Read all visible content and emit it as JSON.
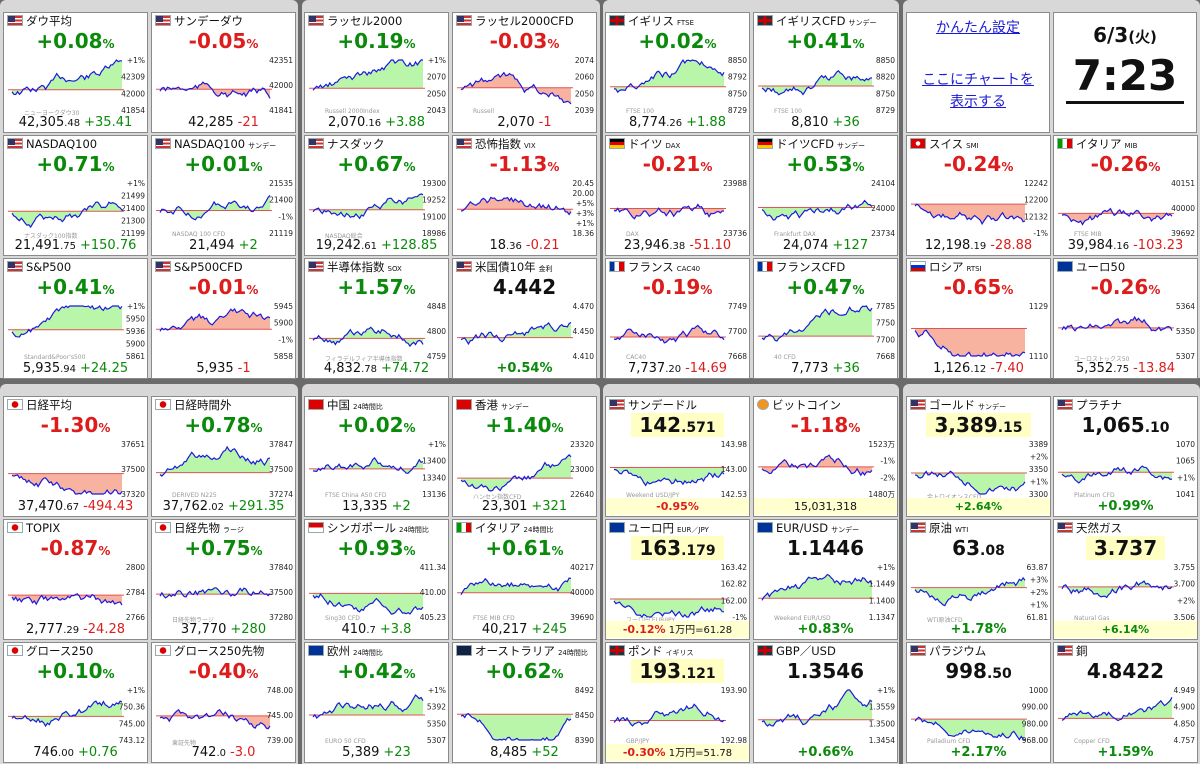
{
  "settings": {
    "easy_settings": "かんたん設定",
    "chart_here_1": "ここにチャートを",
    "chart_here_2": "表示する"
  },
  "clock": {
    "date": "6/3",
    "weekday": "(火)",
    "time": "7:23"
  },
  "colors": {
    "up": "#0a8a0a",
    "down": "#dd1c1c",
    "fill_up": "#aef59a",
    "fill_down": "#f7a58f",
    "line": "#1a1adf"
  },
  "tiles": [
    {
      "id": "dow",
      "flag": "f-us",
      "title": "ダウ平均",
      "sub": "",
      "change": "+0.08",
      "unit": "%",
      "dir": "up",
      "price_int": "42,305",
      "price_dec": ".48",
      "price_chg": "+35.41",
      "labels": [
        "+1%",
        "42309",
        "42000",
        "41854"
      ],
      "wm": "ニューヨークダウ30"
    },
    {
      "id": "dow_sun",
      "flag": "f-us",
      "title": "サンデーダウ",
      "sub": "",
      "change": "-0.05",
      "unit": "%",
      "dir": "dn",
      "price_int": "42,285",
      "price_dec": "",
      "price_chg": "-21",
      "labels": [
        "42351",
        "42000",
        "41841"
      ],
      "wm": ""
    },
    {
      "id": "rus",
      "flag": "f-us",
      "title": "ラッセル2000",
      "sub": "",
      "change": "+0.19",
      "unit": "%",
      "dir": "up",
      "price_int": "2,070",
      "price_dec": ".16",
      "price_chg": "+3.88",
      "labels": [
        "+1%",
        "2070",
        "2050",
        "2043"
      ],
      "wm": "Russell 2000Index"
    },
    {
      "id": "rus_cfd",
      "flag": "f-us",
      "title": "ラッセル2000CFD",
      "sub": "",
      "change": "-0.03",
      "unit": "%",
      "dir": "dn",
      "price_int": "2,070",
      "price_dec": "",
      "price_chg": "-1",
      "labels": [
        "2074",
        "2060",
        "2050",
        "2039"
      ],
      "wm": "Russell"
    },
    {
      "id": "ftse",
      "flag": "f-gb",
      "title": "イギリス",
      "sub": "FTSE",
      "change": "+0.02",
      "unit": "%",
      "dir": "up",
      "price_int": "8,774",
      "price_dec": ".26",
      "price_chg": "+1.88",
      "labels": [
        "8850",
        "8792",
        "8750",
        "8729"
      ],
      "wm": "FTSE 100"
    },
    {
      "id": "ftse_cfd",
      "flag": "f-gb",
      "title": "イギリスCFD",
      "sub": "サンデー",
      "change": "+0.41",
      "unit": "%",
      "dir": "up",
      "price_int": "8,810",
      "price_dec": "",
      "price_chg": "+36",
      "labels": [
        "8850",
        "8820",
        "8750",
        "8729"
      ],
      "wm": "FTSE 100"
    },
    {
      "id": "ndq",
      "flag": "f-us",
      "title": "NASDAQ100",
      "sub": "",
      "change": "+0.71",
      "unit": "%",
      "dir": "up",
      "price_int": "21,491",
      "price_dec": ".75",
      "price_chg": "+150.76",
      "labels": [
        "+1%",
        "21499",
        "21400",
        "21300",
        "21199"
      ],
      "wm": "ナスダック100指数"
    },
    {
      "id": "ndq_sun",
      "flag": "f-us",
      "title": "NASDAQ100",
      "sub": "サンデー",
      "change": "+0.01",
      "unit": "%",
      "dir": "up",
      "price_int": "21,494",
      "price_dec": "",
      "price_chg": "+2",
      "labels": [
        "21535",
        "21400",
        "-1%",
        "21119"
      ],
      "wm": "NASDAQ 100 CFD"
    },
    {
      "id": "nas",
      "flag": "f-us",
      "title": "ナスダック",
      "sub": "",
      "change": "+0.67",
      "unit": "%",
      "dir": "up",
      "price_int": "19,242",
      "price_dec": ".61",
      "price_chg": "+128.85",
      "labels": [
        "19300",
        "19252",
        "19100",
        "18986"
      ],
      "wm": "NASDAQ総合"
    },
    {
      "id": "vix",
      "flag": "f-us",
      "title": "恐怖指数",
      "sub": "VIX",
      "change": "-1.13",
      "unit": "%",
      "dir": "dn",
      "price_int": "18",
      "price_dec": ".36",
      "price_chg": "-0.21",
      "labels": [
        "20.45",
        "20.00",
        "+5%",
        "+3%",
        "+1%",
        "18.36"
      ],
      "wm": ""
    },
    {
      "id": "dax",
      "flag": "f-de",
      "title": "ドイツ",
      "sub": "DAX",
      "change": "-0.21",
      "unit": "%",
      "dir": "dn",
      "price_int": "23,946",
      "price_dec": ".38",
      "price_chg": "-51.10",
      "labels": [
        "23988",
        "23736"
      ],
      "wm": "DAX"
    },
    {
      "id": "dax_cfd",
      "flag": "f-de",
      "title": "ドイツCFD",
      "sub": "サンデー",
      "change": "+0.53",
      "unit": "%",
      "dir": "up",
      "price_int": "24,074",
      "price_dec": "",
      "price_chg": "+127",
      "labels": [
        "24104",
        "24000",
        "23734"
      ],
      "wm": "Frankfurt DAX"
    },
    {
      "id": "spx",
      "flag": "f-us",
      "title": "S&P500",
      "sub": "",
      "change": "+0.41",
      "unit": "%",
      "dir": "up",
      "price_int": "5,935",
      "price_dec": ".94",
      "price_chg": "+24.25",
      "labels": [
        "+1%",
        "5950",
        "5936",
        "5900",
        "5861"
      ],
      "wm": "Standard&Poor's500"
    },
    {
      "id": "spx_cfd",
      "flag": "f-us",
      "title": "S&P500CFD",
      "sub": "",
      "change": "-0.01",
      "unit": "%",
      "dir": "dn",
      "price_int": "5,935",
      "price_dec": "",
      "price_chg": "-1",
      "labels": [
        "5945",
        "5900",
        "-1%",
        "5858"
      ],
      "wm": ""
    },
    {
      "id": "sox",
      "flag": "f-us",
      "title": "半導体指数",
      "sub": "SOX",
      "change": "+1.57",
      "unit": "%",
      "dir": "up",
      "price_int": "4,832",
      "price_dec": ".78",
      "price_chg": "+74.72",
      "labels": [
        "4848",
        "4800",
        "4759"
      ],
      "wm": "フィラデルフィア半導体指数"
    },
    {
      "id": "us10",
      "flag": "f-us",
      "title": "米国債10年",
      "sub": "金利",
      "change": "",
      "unit": "",
      "dir": "",
      "big": "4.442",
      "bigdec": "",
      "price_int": "",
      "price_dec": "",
      "price_chg": "+0.54%",
      "labels": [
        "4.470",
        "4.450",
        "4.410"
      ],
      "wm": ""
    },
    {
      "id": "cac",
      "flag": "f-fr",
      "title": "フランス",
      "sub": "CAC40",
      "change": "-0.19",
      "unit": "%",
      "dir": "dn",
      "price_int": "7,737",
      "price_dec": ".20",
      "price_chg": "-14.69",
      "labels": [
        "7749",
        "7700",
        "7668"
      ],
      "wm": "CAC40"
    },
    {
      "id": "cac_cfd",
      "flag": "f-fr",
      "title": "フランスCFD",
      "sub": "",
      "change": "+0.47",
      "unit": "%",
      "dir": "up",
      "price_int": "7,773",
      "price_dec": "",
      "price_chg": "+36",
      "labels": [
        "7785",
        "7750",
        "7700",
        "7668"
      ],
      "wm": "40 CFD"
    },
    {
      "id": "rts",
      "flag": "f-ru",
      "title": "ロシア",
      "sub": "RTSI",
      "change": "-0.65",
      "unit": "%",
      "dir": "dn",
      "price_int": "1,126",
      "price_dec": ".12",
      "price_chg": "-7.40",
      "labels": [
        "1129",
        "1110"
      ],
      "wm": ""
    },
    {
      "id": "eu50",
      "flag": "f-eu",
      "title": "ユーロ50",
      "sub": "",
      "change": "-0.26",
      "unit": "%",
      "dir": "dn",
      "price_int": "5,352",
      "price_dec": ".75",
      "price_chg": "-13.84",
      "labels": [
        "5364",
        "5350",
        "5307"
      ],
      "wm": "ユーロストックス50"
    },
    {
      "id": "smi",
      "flag": "f-ch",
      "title": "スイス",
      "sub": "SMI",
      "change": "-0.24",
      "unit": "%",
      "dir": "dn",
      "price_int": "12,198",
      "price_dec": ".19",
      "price_chg": "-28.88",
      "labels": [
        "12242",
        "12200",
        "12132",
        "-1%"
      ],
      "wm": ""
    },
    {
      "id": "mib",
      "flag": "f-it",
      "title": "イタリア",
      "sub": "MIB",
      "change": "-0.26",
      "unit": "%",
      "dir": "dn",
      "price_int": "39,984",
      "price_dec": ".16",
      "price_chg": "-103.23",
      "labels": [
        "40151",
        "40000",
        "39692"
      ],
      "wm": "FTSE MIB"
    },
    {
      "id": "n225",
      "flag": "f-jp",
      "title": "日経平均",
      "sub": "",
      "change": "-1.30",
      "unit": "%",
      "dir": "dn",
      "price_int": "37,470",
      "price_dec": ".67",
      "price_chg": "-494.43",
      "labels": [
        "37651",
        "37500",
        "37320"
      ],
      "wm": ""
    },
    {
      "id": "n225_ext",
      "flag": "f-jp",
      "title": "日経時間外",
      "sub": "",
      "change": "+0.78",
      "unit": "%",
      "dir": "up",
      "price_int": "37,762",
      "price_dec": ".02",
      "price_chg": "+291.35",
      "labels": [
        "37847",
        "37500",
        "37274"
      ],
      "wm": "DERIVED N225"
    },
    {
      "id": "topix",
      "flag": "f-jp",
      "title": "TOPIX",
      "sub": "",
      "change": "-0.87",
      "unit": "%",
      "dir": "dn",
      "price_int": "2,777",
      "price_dec": ".29",
      "price_chg": "-24.28",
      "labels": [
        "2800",
        "2784",
        "2766"
      ],
      "wm": ""
    },
    {
      "id": "n225_fut",
      "flag": "f-jp",
      "title": "日経先物",
      "sub": "ラージ",
      "change": "+0.75",
      "unit": "%",
      "dir": "up",
      "price_int": "37,770",
      "price_dec": "",
      "price_chg": "+280",
      "labels": [
        "37840",
        "37500",
        "37280"
      ],
      "wm": "日経先物ラージ"
    },
    {
      "id": "g250",
      "flag": "f-jp",
      "title": "グロース250",
      "sub": "",
      "change": "+0.10",
      "unit": "%",
      "dir": "up",
      "price_int": "746",
      "price_dec": ".00",
      "price_chg": "+0.76",
      "labels": [
        "+1%",
        "750.36",
        "745.00",
        "743.12"
      ],
      "wm": ""
    },
    {
      "id": "g250_fut",
      "flag": "f-jp",
      "title": "グロース250先物",
      "sub": "",
      "change": "-0.40",
      "unit": "%",
      "dir": "dn",
      "price_int": "742",
      "price_dec": ".0",
      "price_chg": "-3.0",
      "labels": [
        "748.00",
        "745.00",
        "739.00"
      ],
      "wm": "東証先物"
    },
    {
      "id": "cn",
      "flag": "f-cn",
      "title": "中国",
      "sub": "24時間比",
      "change": "+0.02",
      "unit": "%",
      "dir": "up",
      "price_int": "13,335",
      "price_dec": "",
      "price_chg": "+2",
      "labels": [
        "+1%",
        "13400",
        "13340",
        "13136"
      ],
      "wm": "FTSE China A50 CFD"
    },
    {
      "id": "hk",
      "flag": "f-hk",
      "title": "香港",
      "sub": "サンデー",
      "change": "+1.40",
      "unit": "%",
      "dir": "up",
      "price_int": "23,301",
      "price_dec": "",
      "price_chg": "+321",
      "labels": [
        "23320",
        "23000",
        "22640"
      ],
      "wm": "ハンセン指数CFD"
    },
    {
      "id": "sg",
      "flag": "f-sg",
      "title": "シンガポール",
      "sub": "24時間比",
      "change": "+0.93",
      "unit": "%",
      "dir": "up",
      "price_int": "410",
      "price_dec": ".7",
      "price_chg": "+3.8",
      "labels": [
        "411.34",
        "410.00",
        "405.23"
      ],
      "wm": "Sing30 CFD"
    },
    {
      "id": "it24",
      "flag": "f-it",
      "title": "イタリア",
      "sub": "24時間比",
      "change": "+0.61",
      "unit": "%",
      "dir": "up",
      "price_int": "40,217",
      "price_dec": "",
      "price_chg": "+245",
      "labels": [
        "40217",
        "40000",
        "39690"
      ],
      "wm": "FTSE MIB CFD"
    },
    {
      "id": "eu24",
      "flag": "f-eu",
      "title": "欧州",
      "sub": "24時間比",
      "change": "+0.42",
      "unit": "%",
      "dir": "up",
      "price_int": "5,389",
      "price_dec": "",
      "price_chg": "+23",
      "labels": [
        "+1%",
        "5392",
        "5350",
        "5307"
      ],
      "wm": "EURO 50 CFD"
    },
    {
      "id": "au",
      "flag": "f-au",
      "title": "オーストラリア",
      "sub": "24時間比",
      "change": "+0.62",
      "unit": "%",
      "dir": "up",
      "price_int": "8,485",
      "price_dec": "",
      "price_chg": "+52",
      "labels": [
        "8492",
        "8450",
        "8390"
      ],
      "wm": ""
    },
    {
      "id": "usdjpy",
      "flag": "f-us",
      "title": "サンデードル",
      "sub": "",
      "change": "",
      "unit": "",
      "dir": "",
      "big": "142",
      "bigdec": ".571",
      "price_int": "",
      "price_dec": "",
      "price_chg": "-0.95%",
      "labels": [
        "143.98",
        "143.00",
        "142.53"
      ],
      "wm": "Weekend USD/JPY",
      "hl": true
    },
    {
      "id": "btc",
      "flag": "f-btc",
      "title": "ビットコイン",
      "sub": "",
      "change": "-1.18",
      "unit": "%",
      "dir": "dn",
      "price_int": "15,031,318",
      "price_dec": "",
      "price_chg": "",
      "labels": [
        "1523万",
        "-1%",
        "-2%",
        "1480万"
      ],
      "wm": "",
      "botalt": true
    },
    {
      "id": "eurjpy",
      "flag": "f-eu",
      "title": "ユーロ円",
      "sub": "EUR／JPY",
      "change": "",
      "unit": "",
      "dir": "",
      "big": "163",
      "bigdec": ".179",
      "price_int": "",
      "price_dec": "",
      "price_chg": "-0.12%",
      "extra": "1万円=61.28",
      "labels": [
        "163.42",
        "162.82",
        "162.00",
        "-1%"
      ],
      "wm": "ユーロ円 EUR/JPY",
      "hl": true
    },
    {
      "id": "eurusd",
      "flag": "f-eu",
      "title": "EUR/USD",
      "sub": "サンデー",
      "change": "",
      "unit": "",
      "dir": "",
      "big": "1.1446",
      "bigdec": "",
      "price_int": "",
      "price_dec": "",
      "price_chg": "+0.83%",
      "labels": [
        "+1%",
        "1.1449",
        "1.1400",
        "1.1347"
      ],
      "wm": "Weekend EUR/USD"
    },
    {
      "id": "gbpjpy",
      "flag": "f-gb",
      "title": "ポンド",
      "sub": "イギリス",
      "change": "",
      "unit": "",
      "dir": "",
      "big": "193",
      "bigdec": ".121",
      "price_int": "",
      "price_dec": "",
      "price_chg": "-0.30%",
      "extra": "1万円=51.78",
      "labels": [
        "193.90",
        "192.98"
      ],
      "wm": "GBP/JPY",
      "hl": true
    },
    {
      "id": "gbpusd",
      "flag": "f-gb",
      "title": "GBP／USD",
      "sub": "",
      "change": "",
      "unit": "",
      "dir": "",
      "big": "1.3546",
      "bigdec": "",
      "price_int": "",
      "price_dec": "",
      "price_chg": "+0.66%",
      "labels": [
        "+1%",
        "1.3559",
        "1.3500",
        "1.3454"
      ],
      "wm": ""
    },
    {
      "id": "gold",
      "flag": "f-us",
      "title": "ゴールド",
      "sub": "サンデー",
      "change": "",
      "unit": "",
      "dir": "",
      "big": "3,389",
      "bigdec": ".15",
      "price_int": "",
      "price_dec": "",
      "price_chg": "+2.64%",
      "labels": [
        "3389",
        "+2%",
        "3350",
        "+1%",
        "3300"
      ],
      "wm": "金トロイオンスCFD",
      "hl": true
    },
    {
      "id": "plat",
      "flag": "f-us",
      "title": "プラチナ",
      "sub": "",
      "change": "",
      "unit": "",
      "dir": "",
      "big": "1,065",
      "bigdec": ".10",
      "price_int": "",
      "price_dec": "",
      "price_chg": "+0.99%",
      "labels": [
        "1070",
        "1065",
        "+1%",
        "1041"
      ],
      "wm": "Platinum CFD"
    },
    {
      "id": "wti",
      "flag": "f-us",
      "title": "原油",
      "sub": "WTI",
      "change": "",
      "unit": "",
      "dir": "",
      "big": "63",
      "bigdec": ".08",
      "price_int": "",
      "price_dec": "",
      "price_chg": "+1.78%",
      "labels": [
        "63.87",
        "+3%",
        "+2%",
        "+1%",
        "61.81"
      ],
      "wm": "WTI原油CFD"
    },
    {
      "id": "ng",
      "flag": "f-us",
      "title": "天然ガス",
      "sub": "",
      "change": "",
      "unit": "",
      "dir": "",
      "big": "3.737",
      "bigdec": "",
      "price_int": "",
      "price_dec": "",
      "price_chg": "+6.14%",
      "labels": [
        "3.755",
        "3.700",
        "+2%",
        "3.506"
      ],
      "wm": "Natural Gas",
      "hl": true
    },
    {
      "id": "pd",
      "flag": "f-us",
      "title": "パラジウム",
      "sub": "",
      "change": "",
      "unit": "",
      "dir": "",
      "big": "998",
      "bigdec": ".50",
      "price_int": "",
      "price_dec": "",
      "price_chg": "+2.17%",
      "labels": [
        "1000",
        "990.00",
        "980.00",
        "968.00"
      ],
      "wm": "Palladium CFD"
    },
    {
      "id": "cu",
      "flag": "f-us",
      "title": "銅",
      "sub": "",
      "change": "",
      "unit": "",
      "dir": "",
      "big": "4.8422",
      "bigdec": "",
      "price_int": "",
      "price_dec": "",
      "price_chg": "+1.59%",
      "labels": [
        "4.949",
        "4.900",
        "4.850",
        "4.757"
      ],
      "wm": "Copper CFD"
    }
  ]
}
